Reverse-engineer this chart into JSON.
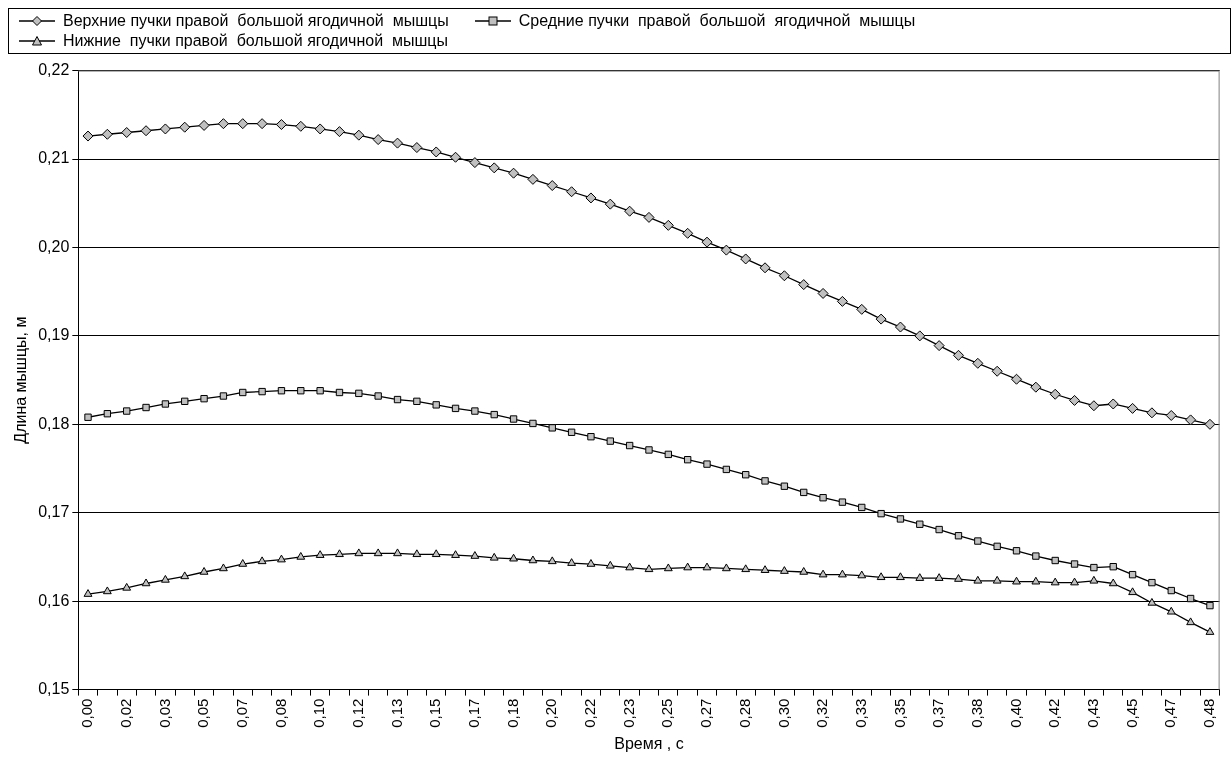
{
  "chart_data": {
    "type": "line",
    "xlabel": "Время , с",
    "ylabel": "Длина мышцы, м",
    "categories": [
      "0,00",
      null,
      "0,02",
      null,
      "0,03",
      null,
      "0,05",
      null,
      "0,07",
      null,
      "0,08",
      null,
      "0,10",
      null,
      "0,12",
      null,
      "0,13",
      null,
      "0,15",
      null,
      "0,17",
      null,
      "0,18",
      null,
      "0,20",
      null,
      "0,22",
      null,
      "0,23",
      null,
      "0,25",
      null,
      "0,27",
      null,
      "0,28",
      null,
      "0,30",
      null,
      "0,32",
      null,
      "0,33",
      null,
      "0,35",
      null,
      "0,37",
      null,
      "0,38",
      null,
      "0,40",
      null,
      "0,42",
      null,
      "0,43",
      null,
      "0,45",
      null,
      "0,47",
      null,
      "0,48"
    ],
    "series": [
      {
        "name": "Верхние пучки правой  большой ягодичной  мышцы",
        "color": "#000000",
        "marker": "diamond",
        "values": [
          0.2126,
          0.2128,
          0.213,
          0.2132,
          0.2134,
          0.2136,
          0.2138,
          0.214,
          0.214,
          0.214,
          0.2139,
          0.2137,
          0.2134,
          0.2131,
          0.2127,
          0.2122,
          0.2118,
          0.2113,
          0.2108,
          0.2102,
          0.2096,
          0.209,
          0.2084,
          0.2077,
          0.207,
          0.2063,
          0.2056,
          0.2049,
          0.2041,
          0.2034,
          0.2025,
          0.2016,
          0.2006,
          0.1997,
          0.1987,
          0.1977,
          0.1968,
          0.1958,
          0.1948,
          0.1939,
          0.193,
          0.1919,
          0.191,
          0.19,
          0.1889,
          0.1878,
          0.1869,
          0.186,
          0.1851,
          0.1842,
          0.1834,
          0.1827,
          0.1821,
          0.1823,
          0.1818,
          0.1813,
          0.181,
          0.1805,
          0.18
        ]
      },
      {
        "name": "Средние пучки  правой  большой  ягодичной  мышцы",
        "color": "#000000",
        "marker": "square",
        "values": [
          0.1808,
          0.1812,
          0.1815,
          0.1819,
          0.1823,
          0.1826,
          0.1829,
          0.1832,
          0.1836,
          0.1837,
          0.1838,
          0.1838,
          0.1838,
          0.1836,
          0.1835,
          0.1832,
          0.1828,
          0.1826,
          0.1822,
          0.1818,
          0.1815,
          0.1811,
          0.1806,
          0.1801,
          0.1796,
          0.1791,
          0.1786,
          0.1781,
          0.1776,
          0.1771,
          0.1766,
          0.176,
          0.1755,
          0.1749,
          0.1743,
          0.1736,
          0.173,
          0.1723,
          0.1717,
          0.1712,
          0.1706,
          0.1699,
          0.1693,
          0.1687,
          0.1681,
          0.1674,
          0.1668,
          0.1662,
          0.1657,
          0.1651,
          0.1646,
          0.1642,
          0.1638,
          0.1639,
          0.163,
          0.1621,
          0.1612,
          0.1603,
          0.1595
        ]
      },
      {
        "name": "Нижние  пучки правой  большой ягодичной  мышцы",
        "color": "#000000",
        "marker": "triangle",
        "values": [
          0.1608,
          0.1611,
          0.1615,
          0.162,
          0.1624,
          0.1628,
          0.1633,
          0.1637,
          0.1642,
          0.1645,
          0.1647,
          0.165,
          0.1652,
          0.1653,
          0.1654,
          0.1654,
          0.1654,
          0.1653,
          0.1653,
          0.1652,
          0.1651,
          0.1649,
          0.1648,
          0.1646,
          0.1645,
          0.1643,
          0.1642,
          0.164,
          0.1638,
          0.1636,
          0.1637,
          0.1638,
          0.1638,
          0.1637,
          0.1636,
          0.1635,
          0.1634,
          0.1633,
          0.163,
          0.163,
          0.1629,
          0.1627,
          0.1627,
          0.1626,
          0.1626,
          0.1625,
          0.1623,
          0.1623,
          0.1622,
          0.1622,
          0.1621,
          0.1621,
          0.1623,
          0.162,
          0.161,
          0.1598,
          0.1588,
          0.1576,
          0.1565
        ]
      }
    ],
    "ylim": [
      0.15,
      0.22
    ],
    "yticks": [
      {
        "value": 0.15,
        "label": "0,15"
      },
      {
        "value": 0.16,
        "label": "0,16"
      },
      {
        "value": 0.17,
        "label": "0,17"
      },
      {
        "value": 0.18,
        "label": "0,18"
      },
      {
        "value": 0.19,
        "label": "0,19"
      },
      {
        "value": 0.2,
        "label": "0,20"
      },
      {
        "value": 0.21,
        "label": "0,21"
      },
      {
        "value": 0.22,
        "label": "0,22"
      }
    ],
    "grid": "y",
    "legend": "top",
    "line_style": "solid"
  }
}
